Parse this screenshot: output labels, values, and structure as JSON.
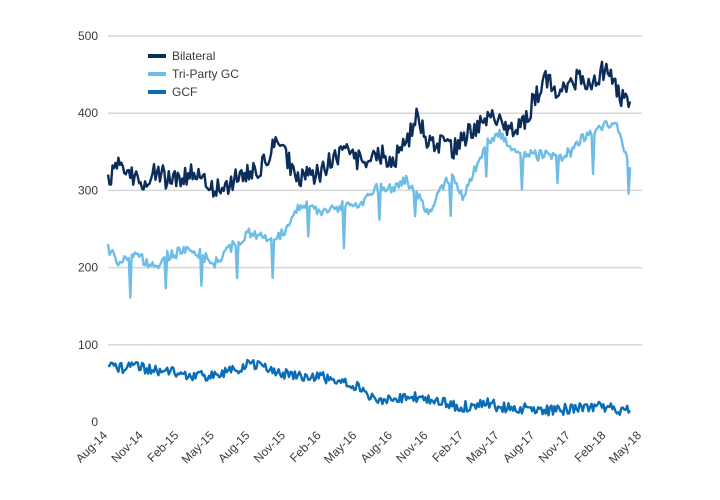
{
  "chart_data": {
    "type": "line",
    "title": "",
    "xlabel": "",
    "ylabel": "",
    "ylim": [
      0,
      500
    ],
    "yticks": [
      0,
      100,
      200,
      300,
      400,
      500
    ],
    "grid": true,
    "legend_position": "top-left",
    "categories": [
      "Aug-14",
      "Nov-14",
      "Feb-15",
      "May-15",
      "Aug-15",
      "Nov-15",
      "Feb-16",
      "May-16",
      "Aug-16",
      "Nov-16",
      "Feb-17",
      "May-17",
      "Aug-17",
      "Nov-17",
      "Feb-18",
      "May-18"
    ],
    "x": [
      "Aug-14",
      "Sep-14",
      "Oct-14",
      "Nov-14",
      "Dec-14",
      "Jan-15",
      "Feb-15",
      "Mar-15",
      "Apr-15",
      "May-15",
      "Jun-15",
      "Jul-15",
      "Aug-15",
      "Sep-15",
      "Oct-15",
      "Nov-15",
      "Dec-15",
      "Jan-16",
      "Feb-16",
      "Mar-16",
      "Apr-16",
      "May-16",
      "Jun-16",
      "Jul-16",
      "Aug-16",
      "Sep-16",
      "Oct-16",
      "Nov-16",
      "Dec-16",
      "Jan-17",
      "Feb-17",
      "Mar-17",
      "Apr-17",
      "May-17",
      "Jun-17",
      "Jul-17",
      "Aug-17",
      "Sep-17",
      "Oct-17",
      "Nov-17",
      "Dec-17",
      "Jan-18",
      "Feb-18",
      "Mar-18",
      "Apr-18"
    ],
    "series": [
      {
        "name": "Bilateral",
        "color": "#0c2d5a",
        "values": [
          315,
          335,
          320,
          305,
          325,
          315,
          318,
          322,
          312,
          300,
          305,
          318,
          322,
          330,
          360,
          345,
          312,
          318,
          325,
          340,
          355,
          338,
          340,
          345,
          340,
          355,
          395,
          365,
          360,
          350,
          370,
          380,
          400,
          390,
          375,
          385,
          420,
          445,
          430,
          445,
          440,
          440,
          460,
          425,
          415
        ]
      },
      {
        "name": "Tri-Party GC",
        "color": "#6ebde6",
        "values": [
          225,
          205,
          215,
          210,
          200,
          215,
          220,
          225,
          215,
          205,
          220,
          235,
          245,
          240,
          235,
          250,
          275,
          285,
          270,
          275,
          285,
          280,
          295,
          305,
          300,
          315,
          300,
          270,
          300,
          320,
          290,
          330,
          365,
          375,
          350,
          345,
          345,
          345,
          340,
          350,
          370,
          375,
          390,
          380,
          330
        ]
      },
      {
        "name": "GCF",
        "color": "#0a6eb7",
        "values": [
          78,
          70,
          72,
          70,
          68,
          66,
          64,
          58,
          60,
          58,
          64,
          70,
          75,
          70,
          65,
          62,
          58,
          60,
          58,
          56,
          52,
          45,
          35,
          30,
          32,
          30,
          32,
          28,
          25,
          22,
          20,
          22,
          24,
          20,
          18,
          18,
          16,
          15,
          16,
          17,
          18,
          20,
          18,
          16,
          15
        ]
      }
    ]
  }
}
